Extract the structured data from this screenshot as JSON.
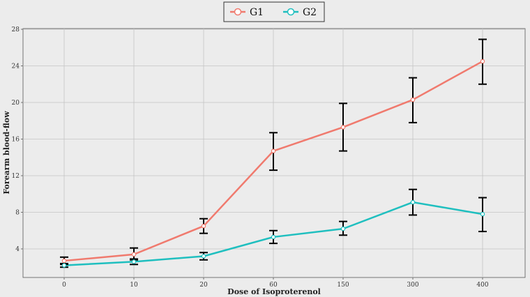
{
  "chart_data": {
    "type": "line",
    "title": "",
    "xlabel": "Dose of Isoproterenol",
    "ylabel": "Forearm blood-flow",
    "categories": [
      "0",
      "10",
      "20",
      "60",
      "150",
      "300",
      "400"
    ],
    "ylim": [
      0,
      28
    ],
    "yticks": [
      4,
      8,
      12,
      16,
      20,
      24,
      28
    ],
    "grid": true,
    "legend_position": "top-center",
    "series": [
      {
        "name": "G1",
        "color": "#f07a6e",
        "values": [
          2.7,
          3.4,
          6.5,
          14.7,
          17.3,
          20.3,
          24.5
        ],
        "error_low": [
          2.3,
          2.8,
          5.7,
          12.6,
          14.7,
          17.8,
          22.0
        ],
        "error_high": [
          3.1,
          4.1,
          7.3,
          16.7,
          19.9,
          22.7,
          26.9
        ]
      },
      {
        "name": "G2",
        "color": "#1fbfbf",
        "values": [
          2.2,
          2.6,
          3.2,
          5.3,
          6.2,
          9.1,
          7.8
        ],
        "error_low": [
          2.0,
          2.3,
          2.8,
          4.6,
          5.5,
          7.7,
          5.9
        ],
        "error_high": [
          2.4,
          2.9,
          3.6,
          6.0,
          7.0,
          10.5,
          9.6
        ]
      }
    ]
  }
}
